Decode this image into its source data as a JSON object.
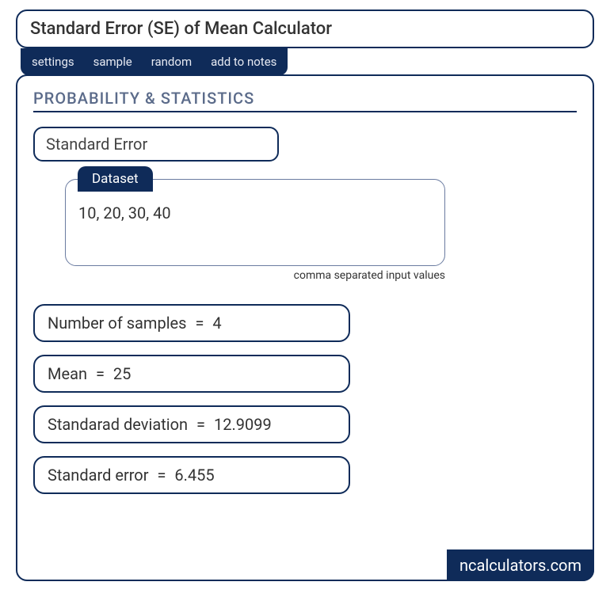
{
  "title": "Standard Error (SE) of Mean Calculator",
  "tabs": {
    "settings": "settings",
    "sample": "sample",
    "random": "random",
    "add_to_notes": "add to notes"
  },
  "section_heading": "PROBABILITY & STATISTICS",
  "calc_name": "Standard Error",
  "dataset": {
    "label": "Dataset",
    "value": "10, 20, 30, 40",
    "hint": "comma separated input values"
  },
  "results": {
    "n_samples": {
      "label": "Number of samples",
      "value": "4"
    },
    "mean": {
      "label": "Mean",
      "value": "25"
    },
    "stddev": {
      "label": "Standarad deviation",
      "value": "12.9099"
    },
    "stderr": {
      "label": "Standard error",
      "value": "6.455"
    }
  },
  "brand": "ncalculators.com",
  "colors": {
    "primary": "#0f2b59",
    "heading": "#5b6b8a",
    "text": "#333333",
    "background": "#ffffff"
  }
}
